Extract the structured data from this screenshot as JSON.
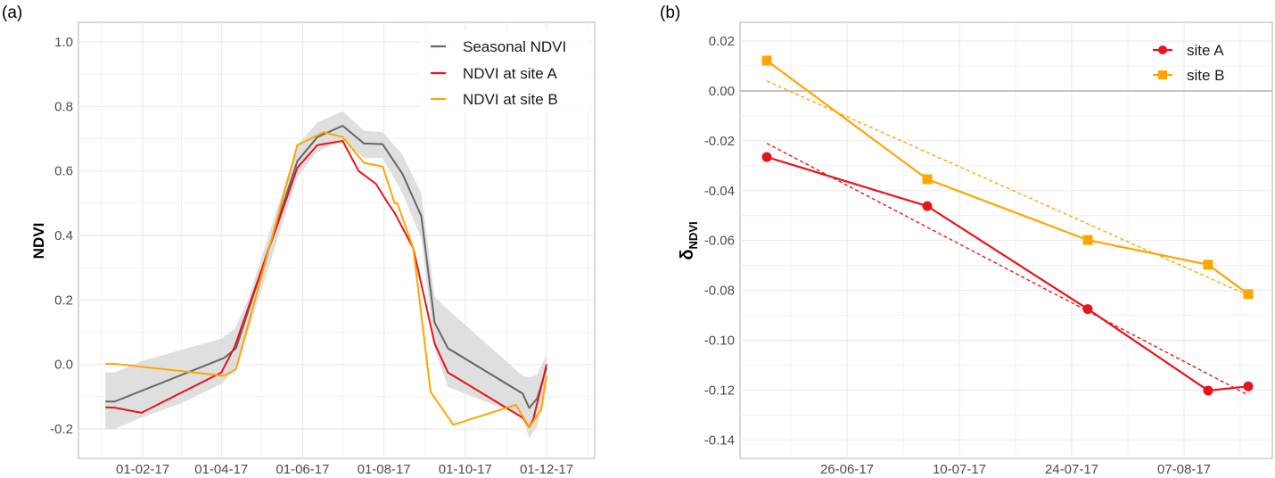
{
  "chart_data": [
    {
      "panel": "(a)",
      "type": "line",
      "title": "",
      "xlabel": "",
      "ylabel": "NDVI",
      "ylim": [
        -0.3,
        1.05
      ],
      "yticks": [
        -0.2,
        0.0,
        0.2,
        0.4,
        0.6,
        0.8,
        1.0
      ],
      "ytick_labels": [
        "-0.2",
        "0.0",
        "0.2",
        "0.4",
        "0.6",
        "0.8",
        "1.0"
      ],
      "xlim_day_of_year": [
        -15,
        370
      ],
      "xticks_day_of_year": [
        31,
        90,
        151,
        212,
        273,
        334
      ],
      "xtick_labels": [
        "01-02-17",
        "01-04-17",
        "01-06-17",
        "01-08-17",
        "01-10-17",
        "01-12-17"
      ],
      "grid": true,
      "legend": {
        "position": "top-right",
        "entries": [
          {
            "label": "Seasonal NDVI",
            "color": "#666666"
          },
          {
            "label": "NDVI at site A",
            "color": "#e8141c"
          },
          {
            "label": "NDVI at site B",
            "color": "#ffa500"
          }
        ]
      },
      "band": {
        "name": "Seasonal NDVI range",
        "color": "#d9d9d9",
        "x": [
          3,
          10,
          30,
          60,
          90,
          100,
          110,
          147,
          162,
          181,
          197,
          211,
          226,
          240,
          250,
          260,
          316,
          321,
          327,
          334
        ],
        "upper": [
          -0.025,
          -0.025,
          0.01,
          0.045,
          0.08,
          0.11,
          0.2,
          0.68,
          0.75,
          0.785,
          0.725,
          0.72,
          0.65,
          0.53,
          0.21,
          0.17,
          -0.035,
          -0.04,
          -0.03,
          0.03
        ],
        "lower": [
          -0.2,
          -0.2,
          -0.165,
          -0.12,
          -0.06,
          -0.02,
          0.1,
          0.58,
          0.66,
          0.695,
          0.64,
          0.64,
          0.53,
          0.39,
          0.05,
          -0.07,
          -0.16,
          -0.23,
          -0.19,
          -0.04
        ]
      },
      "series": [
        {
          "name": "Seasonal NDVI",
          "color": "#666666",
          "x": [
            3,
            10,
            92,
            101,
            147,
            162,
            181,
            197,
            211,
            226,
            240,
            250,
            260,
            316,
            321,
            327,
            334
          ],
          "values": [
            -0.115,
            -0.115,
            0.02,
            0.05,
            0.63,
            0.705,
            0.74,
            0.685,
            0.683,
            0.59,
            0.46,
            0.13,
            0.05,
            -0.09,
            -0.135,
            -0.105,
            -0.01
          ]
        },
        {
          "name": "NDVI at site A",
          "color": "#e8141c",
          "x": [
            3,
            10,
            30,
            90,
            100,
            147,
            162,
            181,
            193,
            206,
            215,
            220,
            234,
            250,
            260,
            316,
            321,
            324,
            334
          ],
          "values": [
            -0.133,
            -0.134,
            -0.15,
            -0.025,
            0.055,
            0.61,
            0.68,
            0.693,
            0.6,
            0.56,
            0.5,
            0.47,
            0.36,
            0.065,
            -0.025,
            -0.165,
            -0.195,
            -0.17,
            0.0
          ]
        },
        {
          "name": "NDVI at site B",
          "color": "#ffa500",
          "x": [
            3,
            10,
            92,
            101,
            147,
            167,
            181,
            197,
            211,
            220,
            222,
            234,
            247,
            264,
            311,
            321,
            330,
            334
          ],
          "values": [
            0.002,
            0.002,
            -0.035,
            -0.015,
            0.68,
            0.72,
            0.705,
            0.625,
            0.614,
            0.5,
            0.5,
            0.36,
            -0.085,
            -0.187,
            -0.125,
            -0.195,
            -0.14,
            -0.035
          ]
        }
      ]
    },
    {
      "panel": "(b)",
      "type": "line",
      "title": "",
      "xlabel": "",
      "ylabel": "δNDVI",
      "ylabel_main": "δ",
      "ylabel_sub": "NDVI",
      "ylim": [
        -0.148,
        0.028
      ],
      "yticks": [
        -0.14,
        -0.12,
        -0.1,
        -0.08,
        -0.06,
        -0.04,
        -0.02,
        0.0,
        0.02
      ],
      "ytick_labels": [
        "-0.14",
        "-0.12",
        "-0.10",
        "-0.08",
        "-0.06",
        "-0.04",
        "-0.02",
        "0.00",
        "0.02"
      ],
      "x_unit": "days since 26-06-17",
      "xlim": [
        -13.3,
        52.9
      ],
      "xticks": [
        0,
        14,
        28,
        42
      ],
      "xtick_labels": [
        "26-06-17",
        "10-07-17",
        "24-07-17",
        "07-08-17"
      ],
      "grid": true,
      "reference_line": 0.0,
      "legend": {
        "position": "top-right",
        "entries": [
          {
            "label": "site A",
            "color": "#e8141c",
            "marker": "circle"
          },
          {
            "label": "site B",
            "color": "#ffa500",
            "marker": "square"
          }
        ]
      },
      "series": [
        {
          "name": "site A",
          "color": "#e8141c",
          "marker": "circle",
          "x": [
            -10,
            10,
            30,
            45,
            50
          ],
          "values": [
            -0.0265,
            -0.0462,
            -0.0875,
            -0.1202,
            -0.1185
          ],
          "trend": {
            "style": "dashed",
            "x": [
              -10,
              50
            ],
            "values": [
              -0.021,
              -0.122
            ]
          }
        },
        {
          "name": "site B",
          "color": "#ffa500",
          "marker": "square",
          "x": [
            -10,
            10,
            30,
            45,
            50
          ],
          "values": [
            0.0122,
            -0.0354,
            -0.0598,
            -0.0697,
            -0.0815
          ],
          "trend": {
            "style": "dashed",
            "x": [
              -10,
              50
            ],
            "values": [
              0.004,
              -0.082
            ]
          }
        }
      ]
    }
  ]
}
